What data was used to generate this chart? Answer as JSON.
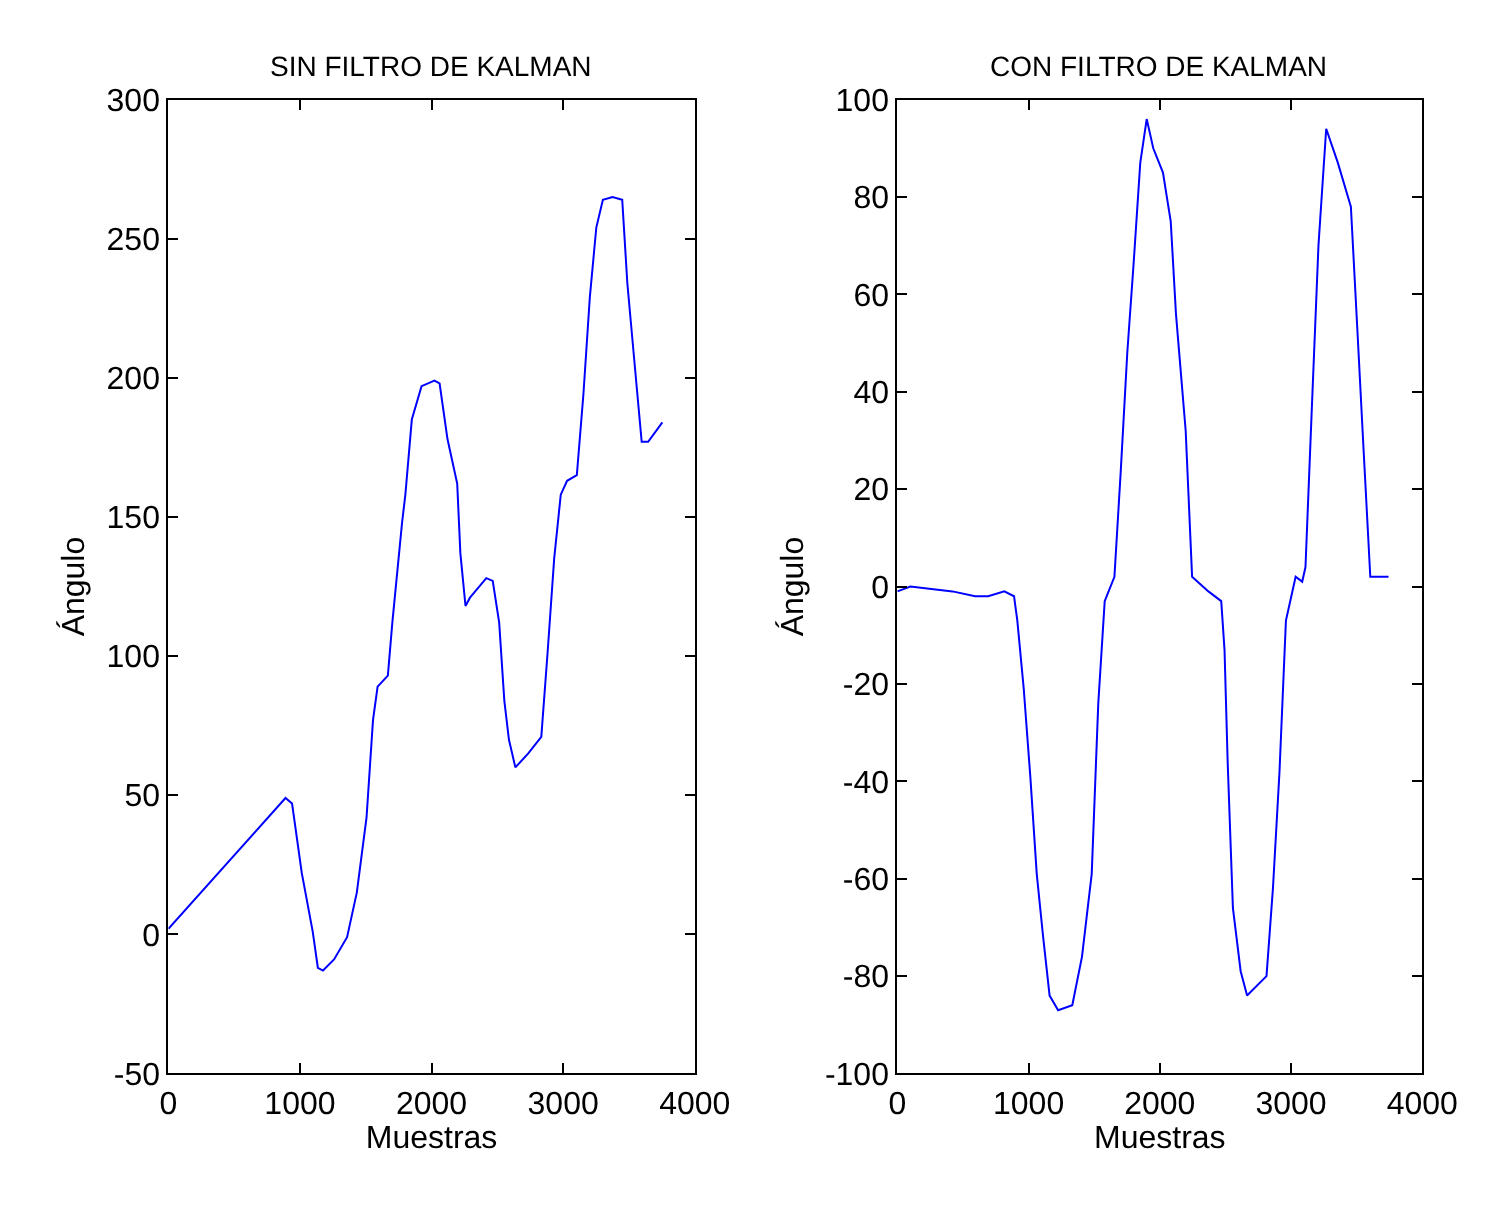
{
  "chart_data": [
    {
      "type": "line",
      "title": "SIN FILTRO DE KALMAN",
      "xlabel": "Muestras",
      "ylabel": "Ángulo",
      "xlim": [
        0,
        4000
      ],
      "xticks": [
        0,
        1000,
        2000,
        3000,
        4000
      ],
      "ylim": [
        -50,
        300
      ],
      "yticks": [
        -50,
        0,
        50,
        100,
        150,
        200,
        250,
        300
      ],
      "series": [
        {
          "color": "#0000ff",
          "x": [
            0,
            890,
            940,
            1014,
            1097,
            1136,
            1175,
            1259,
            1358,
            1432,
            1506,
            1555,
            1590,
            1668,
            1702,
            1776,
            1801,
            1850,
            1924,
            2022,
            2061,
            2121,
            2195,
            2219,
            2258,
            2292,
            2416,
            2465,
            2514,
            2553,
            2588,
            2637,
            2735,
            2834,
            2883,
            2932,
            2982,
            3030,
            3104,
            3154,
            3203,
            3252,
            3302,
            3376,
            3449,
            3488,
            3547,
            3597,
            3646,
            3754
          ],
          "values": [
            2,
            49,
            47,
            22,
            1,
            -12,
            -13,
            -9,
            -1,
            15,
            42,
            77,
            89,
            93,
            112,
            148,
            158,
            185,
            197,
            199,
            198,
            178,
            162,
            137,
            118,
            121,
            128,
            127,
            112,
            84,
            70,
            60,
            65,
            71,
            102,
            135,
            158,
            163,
            165,
            194,
            229,
            254,
            264,
            265,
            264,
            234,
            203,
            177,
            177,
            184
          ]
        }
      ]
    },
    {
      "type": "line",
      "title": "CON FILTRO DE KALMAN",
      "xlabel": "Muestras",
      "ylabel": "Ángulo",
      "xlim": [
        0,
        4000
      ],
      "xticks": [
        0,
        1000,
        2000,
        3000,
        4000
      ],
      "ylim": [
        -100,
        100
      ],
      "yticks": [
        -100,
        -80,
        -60,
        -40,
        -20,
        0,
        20,
        40,
        60,
        80,
        100
      ],
      "series": [
        {
          "color": "#0000ff",
          "x": [
            0,
            99,
            420,
            593,
            692,
            815,
            889,
            914,
            963,
            1013,
            1062,
            1111,
            1160,
            1225,
            1333,
            1407,
            1481,
            1531,
            1580,
            1654,
            1703,
            1752,
            1802,
            1851,
            1900,
            1950,
            2024,
            2083,
            2123,
            2197,
            2246,
            2370,
            2468,
            2493,
            2517,
            2557,
            2616,
            2665,
            2813,
            2862,
            2912,
            2961,
            3035,
            3085,
            3110,
            3159,
            3209,
            3268,
            3357,
            3456,
            3505,
            3555,
            3604,
            3743
          ],
          "values": [
            -1,
            0,
            -1,
            -2,
            -2,
            -1,
            -2,
            -7,
            -21,
            -39,
            -59,
            -72,
            -84,
            -87,
            -86,
            -76,
            -59,
            -24,
            -3,
            2,
            24,
            48,
            67,
            87,
            96,
            90,
            85,
            75,
            56,
            32,
            2,
            -1,
            -3,
            -13,
            -36,
            -66,
            -79,
            -84,
            -80,
            -62,
            -38,
            -7,
            2,
            1,
            4,
            37,
            70,
            94,
            87,
            78,
            53,
            27,
            2,
            2
          ]
        }
      ]
    }
  ]
}
